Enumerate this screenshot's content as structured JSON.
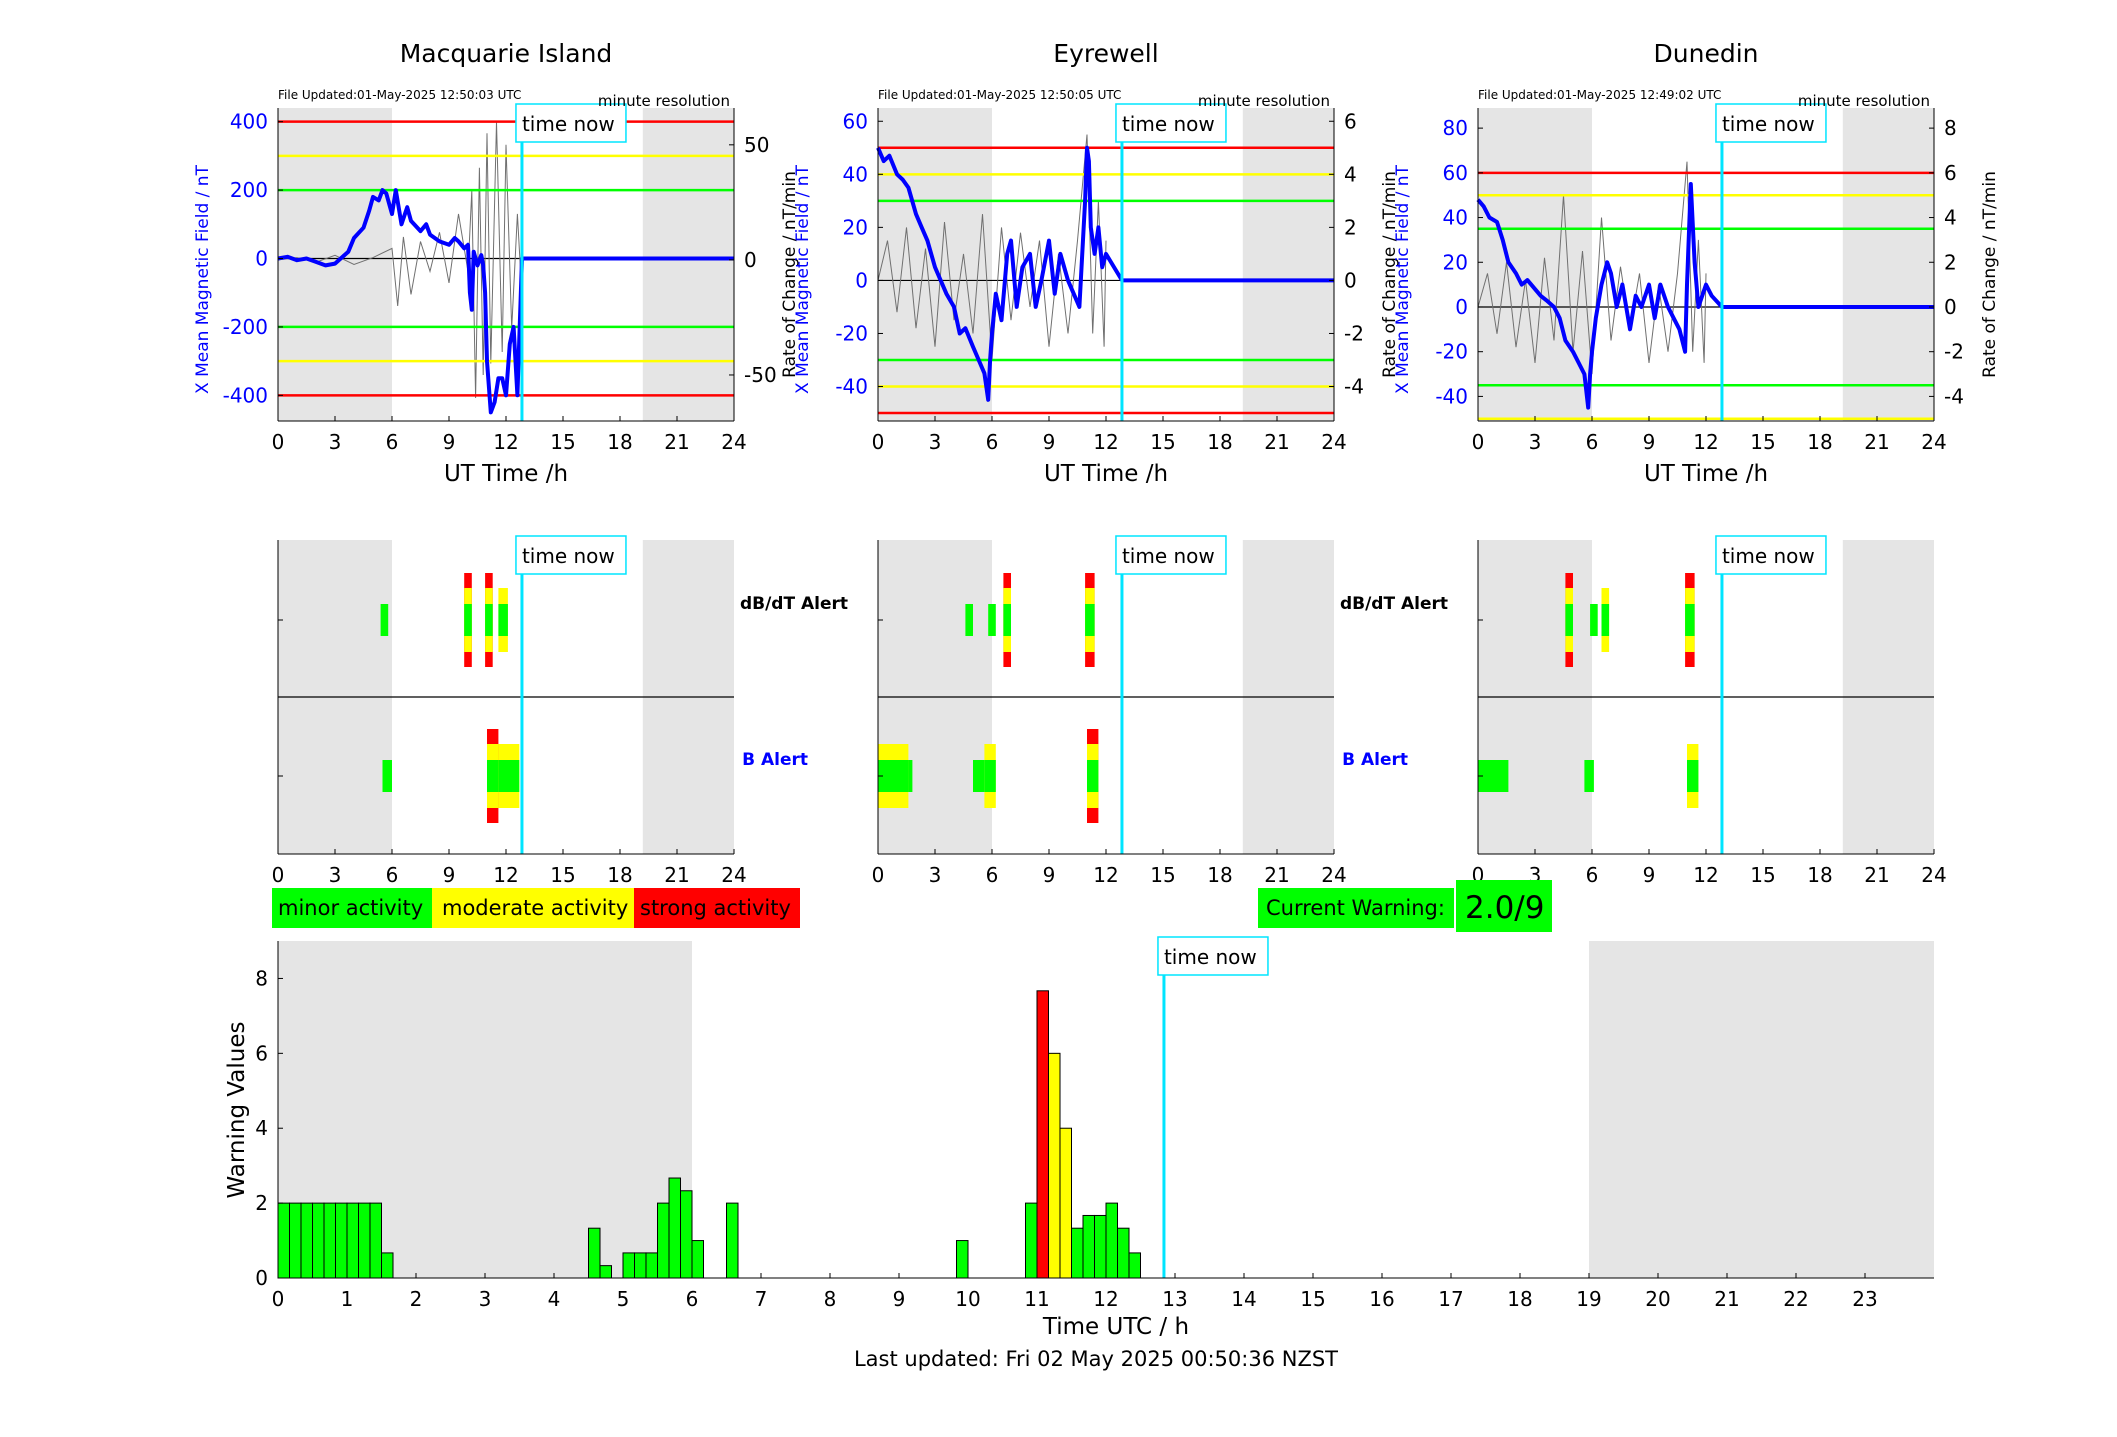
{
  "colors": {
    "shade": "#e5e5e5",
    "field": "#0000ff",
    "rate": "#707070",
    "now": "#00e5ff",
    "green": "#00ff00",
    "yellow": "#ffff00",
    "red": "#ff0000",
    "blue_label": "#0000ff"
  },
  "common": {
    "time_now_label": "time now",
    "minute_resolution": "minute resolution",
    "ut_xlabel": "UT Time /h",
    "field_ylabel": "X Mean Magnetic Field / nT",
    "rate_ylabel": "Rate of Change / nT/min",
    "dbdt_alert_label": "dB/dT Alert",
    "b_alert_label": "B Alert",
    "now_hour": 12.84,
    "shade_hours": [
      [
        0,
        6
      ],
      [
        19.2,
        24
      ]
    ],
    "x_ticks": [
      0,
      3,
      6,
      9,
      12,
      15,
      18,
      21,
      24
    ]
  },
  "legend": {
    "minor": "minor activity",
    "moderate": "moderate activity",
    "strong": "strong activity"
  },
  "current_warning": {
    "label": "Current Warning:",
    "value": "2.0/9"
  },
  "footer": {
    "last_updated": "Last updated: Fri 02 May 2025 00:50:36 NZST"
  },
  "chart_data": [
    {
      "type": "line",
      "title": "Macquarie Island",
      "file_updated": "File Updated:01-May-2025 12:50:03 UTC",
      "xlabel": "UT Time /h",
      "ylabel": "X Mean Magnetic Field / nT",
      "ylabel_right": "Rate of Change / nT/min",
      "xlim": [
        0,
        24
      ],
      "ylim": [
        -475,
        440
      ],
      "y_ticks": [
        -400,
        -200,
        0,
        200,
        400
      ],
      "y2lim": [
        -70,
        66
      ],
      "y2_ticks": [
        -50,
        0,
        50
      ],
      "thresholds": {
        "red": [
          400,
          -400
        ],
        "yellow": [
          300,
          -300
        ],
        "green": [
          200,
          -200
        ]
      },
      "series": [
        {
          "x": [
            0,
            0.5,
            1,
            1.5,
            2,
            2.5,
            3,
            3.3,
            3.7,
            4,
            4.5,
            4.8,
            5,
            5.3,
            5.5,
            5.7,
            5.9,
            6,
            6.2,
            6.5,
            6.8,
            7,
            7.5,
            7.8,
            8,
            8.5,
            9,
            9.3,
            9.5,
            9.8,
            10,
            10.1,
            10.2,
            10.3,
            10.5,
            10.7,
            10.8,
            10.9,
            11,
            11.2,
            11.4,
            11.6,
            11.8,
            12,
            12.2,
            12.4,
            12.6,
            12.84,
            24
          ],
          "y": [
            0,
            5,
            -5,
            0,
            -10,
            -20,
            -15,
            0,
            20,
            60,
            90,
            140,
            180,
            170,
            200,
            190,
            150,
            130,
            200,
            100,
            150,
            110,
            80,
            100,
            70,
            50,
            40,
            60,
            50,
            30,
            40,
            -100,
            -150,
            20,
            -20,
            10,
            -20,
            -100,
            -300,
            -450,
            -420,
            -350,
            -350,
            -400,
            -250,
            -200,
            -400,
            0,
            0
          ]
        },
        {
          "x": [
            0,
            1,
            2,
            3,
            4,
            5,
            6,
            6.3,
            6.6,
            7,
            7.5,
            8,
            8.5,
            9,
            9.5,
            10,
            10.2,
            10.4,
            10.6,
            10.8,
            11,
            11.2,
            11.5,
            11.8,
            12,
            12.3,
            12.6,
            12.8
          ],
          "y": [
            0,
            1,
            -1,
            2,
            -2,
            1,
            5,
            -20,
            10,
            -15,
            8,
            -5,
            12,
            -10,
            20,
            -5,
            30,
            -60,
            40,
            -50,
            55,
            -45,
            60,
            -40,
            50,
            -30,
            20,
            -10
          ]
        }
      ]
    },
    {
      "type": "line",
      "title": "Eyrewell",
      "file_updated": "File Updated:01-May-2025 12:50:05 UTC",
      "xlabel": "UT Time /h",
      "ylabel": "X Mean Magnetic Field / nT",
      "ylabel_right": "Rate of Change / nT/min",
      "xlim": [
        0,
        24
      ],
      "ylim": [
        -53,
        65
      ],
      "y_ticks": [
        -40,
        -20,
        0,
        20,
        40,
        60
      ],
      "y2lim": [
        -5.3,
        6.5
      ],
      "y2_ticks": [
        -4,
        -2,
        0,
        2,
        4,
        6
      ],
      "thresholds": {
        "red": [
          50,
          -50
        ],
        "yellow": [
          40,
          -40
        ],
        "green": [
          30,
          -30
        ]
      },
      "series": [
        {
          "x": [
            0,
            0.3,
            0.6,
            1,
            1.3,
            1.6,
            2,
            2.3,
            2.6,
            3,
            3.3,
            3.6,
            4,
            4.3,
            4.6,
            5,
            5.3,
            5.6,
            5.8,
            5.9,
            6,
            6.2,
            6.5,
            6.8,
            7,
            7.3,
            7.6,
            8,
            8.3,
            8.6,
            9,
            9.3,
            9.6,
            10,
            10.3,
            10.6,
            10.9,
            11,
            11.1,
            11.2,
            11.4,
            11.6,
            11.8,
            12,
            12.84,
            24
          ],
          "y": [
            50,
            45,
            47,
            40,
            38,
            35,
            25,
            20,
            15,
            5,
            0,
            -5,
            -10,
            -20,
            -18,
            -25,
            -30,
            -35,
            -45,
            -30,
            -20,
            -5,
            -15,
            10,
            15,
            -10,
            5,
            10,
            -10,
            0,
            15,
            -5,
            10,
            0,
            -5,
            -10,
            30,
            50,
            45,
            20,
            10,
            20,
            5,
            10,
            0,
            0
          ]
        },
        {
          "x": [
            0,
            0.5,
            1,
            1.5,
            2,
            2.5,
            3,
            3.5,
            4,
            4.5,
            5,
            5.5,
            6,
            6.5,
            7,
            7.5,
            8,
            8.5,
            9,
            9.5,
            10,
            10.5,
            11,
            11.3,
            11.6,
            11.9,
            12
          ],
          "y": [
            0,
            1.5,
            -1.2,
            2,
            -1.8,
            1.2,
            -2.5,
            2.2,
            -1.5,
            1,
            -2,
            2.5,
            -3,
            2,
            -1.5,
            1.8,
            -1,
            1.5,
            -2.5,
            1,
            -2,
            1.5,
            5.5,
            -2,
            3,
            -2.5,
            1.5
          ]
        }
      ]
    },
    {
      "type": "line",
      "title": "Dunedin",
      "file_updated": "File Updated:01-May-2025 12:49:02 UTC",
      "xlabel": "UT Time /h",
      "ylabel": "X Mean Magnetic Field / nT",
      "ylabel_right": "Rate of Change / nT/min",
      "xlim": [
        0,
        24
      ],
      "ylim": [
        -51,
        89
      ],
      "y_ticks": [
        -40,
        -20,
        0,
        20,
        40,
        60,
        80
      ],
      "y2lim": [
        -5.1,
        8.9
      ],
      "y2_ticks": [
        -4,
        -2,
        0,
        2,
        4,
        6,
        8
      ],
      "thresholds": {
        "red": [
          60
        ],
        "yellow": [
          50,
          -50
        ],
        "green": [
          35,
          -35
        ]
      },
      "series": [
        {
          "x": [
            0,
            0.3,
            0.6,
            1,
            1.3,
            1.6,
            2,
            2.3,
            2.6,
            3,
            3.3,
            3.6,
            4,
            4.3,
            4.6,
            5,
            5.3,
            5.6,
            5.8,
            5.9,
            6,
            6.2,
            6.5,
            6.8,
            7,
            7.3,
            7.6,
            8,
            8.3,
            8.6,
            9,
            9.3,
            9.6,
            10,
            10.3,
            10.6,
            10.9,
            11,
            11.2,
            11.4,
            11.6,
            11.8,
            12,
            12.3,
            12.84,
            24
          ],
          "y": [
            48,
            45,
            40,
            38,
            30,
            20,
            15,
            10,
            12,
            8,
            5,
            3,
            0,
            -5,
            -15,
            -20,
            -25,
            -30,
            -45,
            -30,
            -20,
            -5,
            10,
            20,
            15,
            0,
            10,
            -10,
            5,
            0,
            10,
            -5,
            10,
            0,
            -5,
            -10,
            -20,
            10,
            55,
            20,
            0,
            5,
            10,
            5,
            0,
            0
          ]
        },
        {
          "x": [
            0,
            0.5,
            1,
            1.5,
            2,
            2.5,
            3,
            3.5,
            4,
            4.5,
            5,
            5.5,
            6,
            6.5,
            7,
            7.5,
            8,
            8.5,
            9,
            9.5,
            10,
            10.5,
            11,
            11.3,
            11.6,
            11.9,
            12
          ],
          "y": [
            0,
            1.5,
            -1.2,
            2,
            -1.8,
            1.2,
            -2.5,
            2.2,
            -1.5,
            5,
            -2,
            2.5,
            -3,
            4,
            -1.5,
            1.8,
            -1,
            1.5,
            -2.5,
            1,
            -2,
            1.5,
            6.5,
            -2,
            3,
            -2.5,
            1.5
          ]
        }
      ]
    },
    {
      "type": "bar",
      "title": "Macquarie Island alerts",
      "xlim": [
        0,
        24
      ],
      "dbdt_alert": [
        {
          "start": 5.4,
          "end": 5.8,
          "levels": [
            "green"
          ]
        },
        {
          "start": 9.8,
          "end": 10.2,
          "levels": [
            "red",
            "yellow",
            "green"
          ]
        },
        {
          "start": 10.9,
          "end": 11.3,
          "levels": [
            "red",
            "yellow",
            "green"
          ]
        },
        {
          "start": 11.6,
          "end": 12.1,
          "levels": [
            "yellow",
            "green"
          ]
        }
      ],
      "b_alert": [
        {
          "start": 5.5,
          "end": 6.0,
          "levels": [
            "green"
          ]
        },
        {
          "start": 11.0,
          "end": 11.6,
          "levels": [
            "red",
            "yellow",
            "green"
          ]
        },
        {
          "start": 11.6,
          "end": 12.7,
          "levels": [
            "yellow",
            "green"
          ]
        }
      ]
    },
    {
      "type": "bar",
      "title": "Eyrewell alerts",
      "xlim": [
        0,
        24
      ],
      "dbdt_alert": [
        {
          "start": 4.6,
          "end": 5.0,
          "levels": [
            "green"
          ]
        },
        {
          "start": 5.8,
          "end": 6.2,
          "levels": [
            "green"
          ]
        },
        {
          "start": 6.6,
          "end": 7.0,
          "levels": [
            "red",
            "yellow",
            "green"
          ]
        },
        {
          "start": 10.9,
          "end": 11.4,
          "levels": [
            "red",
            "yellow",
            "green"
          ]
        }
      ],
      "b_alert": [
        {
          "start": 0,
          "end": 1.6,
          "levels": [
            "yellow",
            "green"
          ]
        },
        {
          "start": 1.6,
          "end": 1.8,
          "levels": [
            "green"
          ]
        },
        {
          "start": 5.0,
          "end": 5.6,
          "levels": [
            "green"
          ]
        },
        {
          "start": 5.6,
          "end": 6.2,
          "levels": [
            "yellow",
            "green"
          ]
        },
        {
          "start": 11.0,
          "end": 11.6,
          "levels": [
            "red",
            "yellow",
            "green"
          ]
        }
      ]
    },
    {
      "type": "bar",
      "title": "Dunedin alerts",
      "xlim": [
        0,
        24
      ],
      "dbdt_alert": [
        {
          "start": 4.6,
          "end": 5.0,
          "levels": [
            "red",
            "yellow",
            "green"
          ]
        },
        {
          "start": 5.9,
          "end": 6.3,
          "levels": [
            "green"
          ]
        },
        {
          "start": 6.5,
          "end": 6.9,
          "levels": [
            "yellow",
            "green"
          ]
        },
        {
          "start": 10.9,
          "end": 11.4,
          "levels": [
            "red",
            "yellow",
            "green"
          ]
        }
      ],
      "b_alert": [
        {
          "start": 0,
          "end": 1.6,
          "levels": [
            "green"
          ]
        },
        {
          "start": 5.6,
          "end": 6.1,
          "levels": [
            "green"
          ]
        },
        {
          "start": 11.0,
          "end": 11.6,
          "levels": [
            "yellow",
            "green"
          ]
        }
      ]
    },
    {
      "type": "bar",
      "title": "",
      "xlabel": "Time UTC / h",
      "ylabel": "Warning Values",
      "xlim": [
        0,
        24
      ],
      "ylim": [
        0,
        9
      ],
      "y_ticks": [
        0,
        2,
        4,
        6,
        8
      ],
      "x_ticks": [
        0,
        1,
        2,
        3,
        4,
        5,
        6,
        7,
        8,
        9,
        10,
        11,
        12,
        13,
        14,
        15,
        16,
        17,
        18,
        19,
        20,
        21,
        22,
        23
      ],
      "bar_width": 0.1667,
      "shade_hours": [
        [
          0,
          6
        ],
        [
          19,
          24
        ]
      ],
      "now_hour": 12.84,
      "bars": [
        {
          "x": 0.0,
          "value": 2,
          "level": "green"
        },
        {
          "x": 0.1667,
          "value": 2,
          "level": "green"
        },
        {
          "x": 0.3333,
          "value": 2,
          "level": "green"
        },
        {
          "x": 0.5,
          "value": 2,
          "level": "green"
        },
        {
          "x": 0.6667,
          "value": 2,
          "level": "green"
        },
        {
          "x": 0.8333,
          "value": 2,
          "level": "green"
        },
        {
          "x": 1.0,
          "value": 2,
          "level": "green"
        },
        {
          "x": 1.1667,
          "value": 2,
          "level": "green"
        },
        {
          "x": 1.3333,
          "value": 2,
          "level": "green"
        },
        {
          "x": 1.5,
          "value": 0.67,
          "level": "green"
        },
        {
          "x": 4.5,
          "value": 1.33,
          "level": "green"
        },
        {
          "x": 4.6667,
          "value": 0.33,
          "level": "green"
        },
        {
          "x": 5.0,
          "value": 0.67,
          "level": "green"
        },
        {
          "x": 5.1667,
          "value": 0.67,
          "level": "green"
        },
        {
          "x": 5.3333,
          "value": 0.67,
          "level": "green"
        },
        {
          "x": 5.5,
          "value": 2,
          "level": "green"
        },
        {
          "x": 5.6667,
          "value": 2.67,
          "level": "green"
        },
        {
          "x": 5.8333,
          "value": 2.33,
          "level": "green"
        },
        {
          "x": 6.0,
          "value": 1,
          "level": "green"
        },
        {
          "x": 6.5,
          "value": 2,
          "level": "green"
        },
        {
          "x": 9.8333,
          "value": 1,
          "level": "green"
        },
        {
          "x": 10.8333,
          "value": 2,
          "level": "green"
        },
        {
          "x": 11.0,
          "value": 7.67,
          "level": "red"
        },
        {
          "x": 11.1667,
          "value": 6,
          "level": "yellow"
        },
        {
          "x": 11.3333,
          "value": 4,
          "level": "yellow"
        },
        {
          "x": 11.5,
          "value": 1.33,
          "level": "green"
        },
        {
          "x": 11.6667,
          "value": 1.67,
          "level": "green"
        },
        {
          "x": 11.8333,
          "value": 1.67,
          "level": "green"
        },
        {
          "x": 12.0,
          "value": 2,
          "level": "green"
        },
        {
          "x": 12.1667,
          "value": 1.33,
          "level": "green"
        },
        {
          "x": 12.3333,
          "value": 0.67,
          "level": "green"
        }
      ]
    }
  ]
}
